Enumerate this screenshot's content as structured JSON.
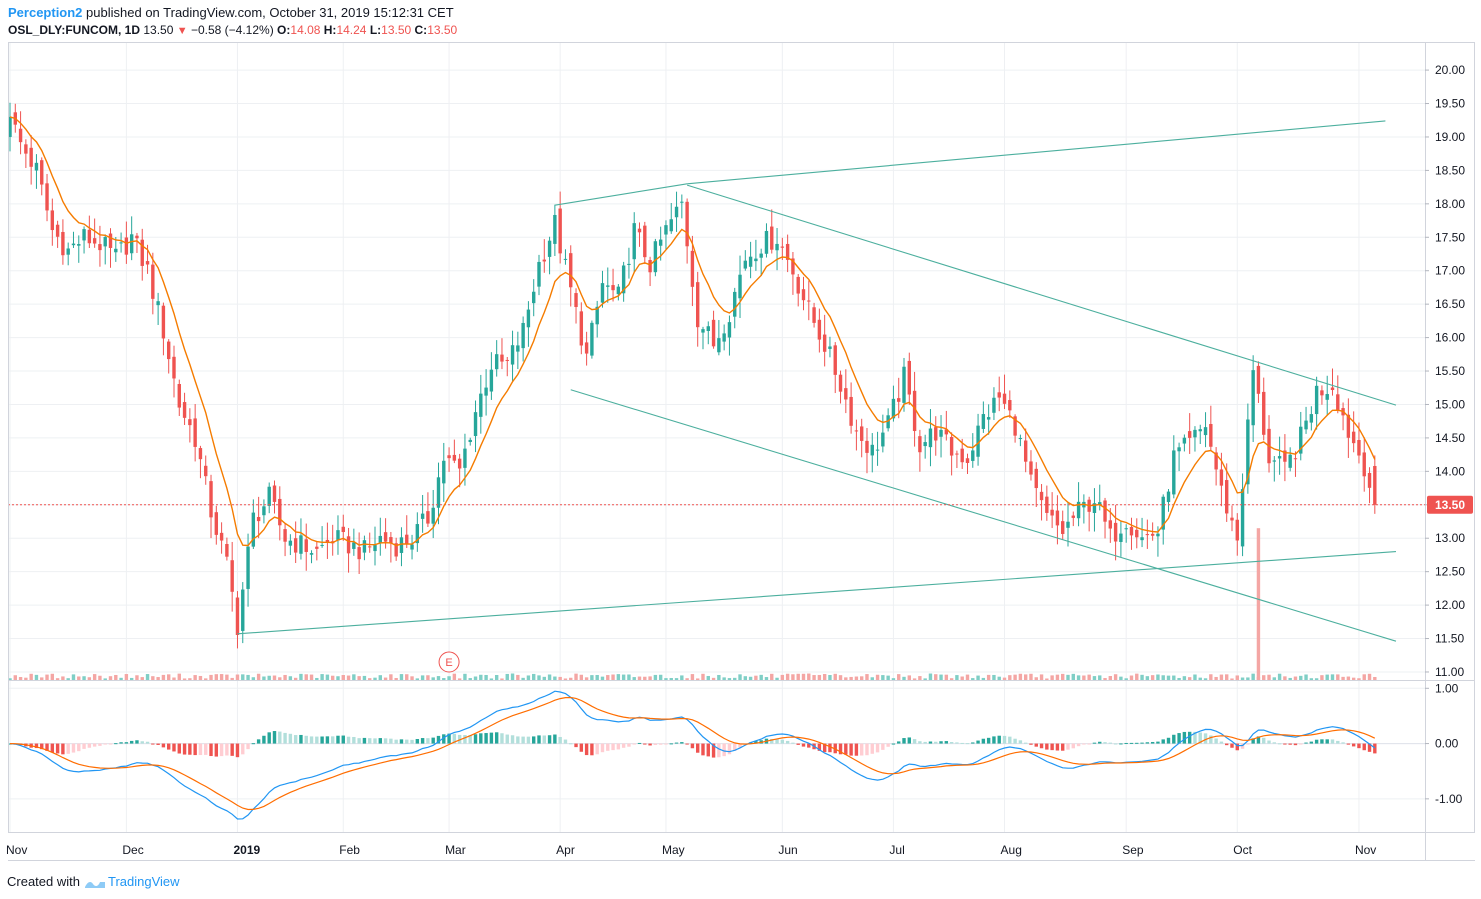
{
  "header": {
    "author": "Perception2",
    "published_text": "published on TradingView.com, October 31, 2019 15:12:31 CET",
    "symbol": "OSL_DLY:FUNCOM, 1D",
    "last": "13.50",
    "change": "−0.58 (−4.12%)",
    "o_label": "O:",
    "o_value": "14.08",
    "h_label": "H:",
    "h_value": "14.24",
    "l_label": "L:",
    "l_value": "13.50",
    "c_label": "C:",
    "c_value": "13.50"
  },
  "footer": {
    "created_with": "Created with",
    "brand": "TradingView"
  },
  "colors": {
    "up": "#26a69a",
    "down": "#ef5350",
    "ema": "#f57c00",
    "macd": "#2196f3",
    "signal": "#ff6d00",
    "trendline": "#4caf9e",
    "price_line": "#ef5350"
  },
  "chart_data": {
    "type": "candlestick",
    "price_axis_labels": [
      "20.00",
      "19.50",
      "19.00",
      "18.50",
      "18.00",
      "17.50",
      "17.00",
      "16.50",
      "16.00",
      "15.50",
      "15.00",
      "14.50",
      "14.00",
      "13.50",
      "13.00",
      "12.50",
      "12.00",
      "11.50",
      "11.00"
    ],
    "ylim": [
      10.88,
      20.42
    ],
    "current_price_label": "13.50",
    "time_axis_labels": [
      {
        "label": "Nov",
        "month": 0
      },
      {
        "label": "Dec",
        "month": 1
      },
      {
        "label": "2019",
        "month": 2
      },
      {
        "label": "Feb",
        "month": 3
      },
      {
        "label": "Mar",
        "month": 4
      },
      {
        "label": "Apr",
        "month": 5
      },
      {
        "label": "May",
        "month": 6
      },
      {
        "label": "Jun",
        "month": 7
      },
      {
        "label": "Jul",
        "month": 8
      },
      {
        "label": "Aug",
        "month": 9
      },
      {
        "label": "Sep",
        "month": 10
      },
      {
        "label": "Oct",
        "month": 11
      },
      {
        "label": "Nov",
        "month": 12
      }
    ],
    "close_anchors": [
      [
        0,
        19.3
      ],
      [
        2,
        18.9
      ],
      [
        5,
        18.5
      ],
      [
        8,
        17.6
      ],
      [
        11,
        17.3
      ],
      [
        14,
        17.5
      ],
      [
        17,
        17.4
      ],
      [
        20,
        17.2
      ],
      [
        23,
        17.5
      ],
      [
        26,
        17.0
      ],
      [
        29,
        16.1
      ],
      [
        32,
        15.0
      ],
      [
        35,
        14.5
      ],
      [
        38,
        13.4
      ],
      [
        41,
        12.6
      ],
      [
        43,
        11.7
      ],
      [
        46,
        13.3
      ],
      [
        49,
        13.6
      ],
      [
        52,
        13.0
      ],
      [
        55,
        12.9
      ],
      [
        58,
        12.8
      ],
      [
        61,
        13.0
      ],
      [
        64,
        12.9
      ],
      [
        67,
        12.8
      ],
      [
        70,
        13.0
      ],
      [
        73,
        12.9
      ],
      [
        76,
        13.0
      ],
      [
        79,
        13.3
      ],
      [
        82,
        14.2
      ],
      [
        85,
        14.0
      ],
      [
        88,
        14.9
      ],
      [
        91,
        15.6
      ],
      [
        94,
        15.6
      ],
      [
        97,
        16.1
      ],
      [
        100,
        17.1
      ],
      [
        103,
        17.7
      ],
      [
        106,
        16.7
      ],
      [
        109,
        15.7
      ],
      [
        112,
        16.8
      ],
      [
        115,
        16.6
      ],
      [
        118,
        17.6
      ],
      [
        121,
        17.1
      ],
      [
        124,
        17.6
      ],
      [
        127,
        18.0
      ],
      [
        130,
        16.3
      ],
      [
        133,
        15.9
      ],
      [
        136,
        16.4
      ],
      [
        139,
        17.2
      ],
      [
        142,
        17.4
      ],
      [
        145,
        17.5
      ],
      [
        148,
        17.0
      ],
      [
        151,
        16.4
      ],
      [
        154,
        15.9
      ],
      [
        157,
        15.3
      ],
      [
        160,
        14.6
      ],
      [
        163,
        14.3
      ],
      [
        166,
        14.7
      ],
      [
        169,
        15.4
      ],
      [
        172,
        14.4
      ],
      [
        175,
        14.6
      ],
      [
        178,
        14.3
      ],
      [
        181,
        14.2
      ],
      [
        184,
        14.8
      ],
      [
        187,
        15.1
      ],
      [
        190,
        14.7
      ],
      [
        193,
        13.8
      ],
      [
        196,
        13.3
      ],
      [
        199,
        13.1
      ],
      [
        202,
        13.4
      ],
      [
        205,
        13.6
      ],
      [
        208,
        13.0
      ],
      [
        211,
        13.3
      ],
      [
        214,
        13.0
      ],
      [
        217,
        13.1
      ],
      [
        220,
        14.2
      ],
      [
        223,
        14.4
      ],
      [
        226,
        14.7
      ],
      [
        229,
        13.7
      ],
      [
        232,
        13.0
      ],
      [
        235,
        15.5
      ],
      [
        238,
        14.2
      ],
      [
        241,
        14.0
      ],
      [
        244,
        14.5
      ],
      [
        247,
        15.2
      ],
      [
        250,
        15.3
      ],
      [
        253,
        14.6
      ],
      [
        256,
        14.1
      ],
      [
        258,
        13.5
      ]
    ],
    "ema_period": 9,
    "price_lines": [
      {
        "from": [
          43,
          11.57
        ],
        "to": [
          262,
          12.8
        ]
      },
      {
        "from": [
          103,
          17.98
        ],
        "to": [
          128,
          18.3
        ]
      },
      {
        "from": [
          128,
          18.3
        ],
        "to": [
          260,
          19.24
        ]
      },
      {
        "from": [
          128,
          18.28
        ],
        "to": [
          262,
          14.99
        ]
      },
      {
        "from": [
          106,
          15.22
        ],
        "to": [
          262,
          11.46
        ]
      }
    ],
    "earnings_marker": {
      "label": "E",
      "day": 83
    },
    "volume_spike": {
      "day": 236,
      "value": 13.15
    },
    "macd_axis_labels": [
      "1.00",
      "0.00",
      "-1.00"
    ],
    "macd_ylim": [
      -1.6,
      1.15
    ]
  }
}
